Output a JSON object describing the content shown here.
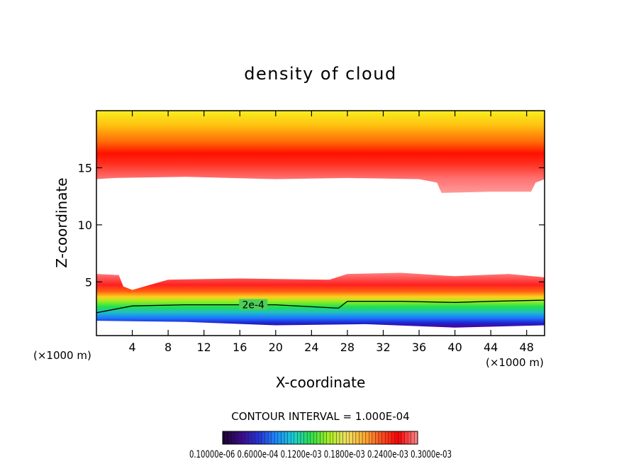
{
  "chart_data": {
    "type": "heatmap",
    "title": "density of cloud",
    "xlabel": "X-coordinate",
    "ylabel": "Z-coordinate",
    "x_unit": "(×1000 m)",
    "y_unit": "(×1000 m)",
    "xlim": [
      0,
      50
    ],
    "ylim": [
      0.3,
      20
    ],
    "x_ticks": [
      4,
      8,
      12,
      16,
      20,
      24,
      28,
      32,
      36,
      40,
      44,
      48
    ],
    "y_ticks": [
      5,
      10,
      15
    ],
    "contour_label": "2e-4",
    "contour_interval_text": "CONTOUR INTERVAL = 1.000E-04",
    "colorbar_labels_text": "0.10000e-06 0.6000e-04 0.1200e-03 0.1800e-03 0.2400e-03 0.3000e-03",
    "upper_layer": {
      "top_km": 20,
      "base_km_profile": [
        [
          0,
          14.0
        ],
        [
          2,
          14.1
        ],
        [
          10,
          14.2
        ],
        [
          20,
          14.0
        ],
        [
          28,
          14.1
        ],
        [
          36,
          14.0
        ],
        [
          38,
          13.7
        ],
        [
          38.5,
          12.8
        ],
        [
          44,
          12.9
        ],
        [
          48.5,
          12.9
        ],
        [
          49,
          13.7
        ],
        [
          50,
          14.0
        ]
      ],
      "peak_km": 16.0
    },
    "lower_layer": {
      "base_km_profile": [
        [
          0,
          1.6
        ],
        [
          10,
          1.5
        ],
        [
          20,
          1.2
        ],
        [
          30,
          1.3
        ],
        [
          40,
          1.0
        ],
        [
          50,
          1.2
        ]
      ],
      "top_km_profile": [
        [
          0,
          5.7
        ],
        [
          2.5,
          5.6
        ],
        [
          3,
          4.6
        ],
        [
          4,
          4.3
        ],
        [
          8,
          5.2
        ],
        [
          16,
          5.3
        ],
        [
          26,
          5.2
        ],
        [
          28,
          5.7
        ],
        [
          34,
          5.8
        ],
        [
          40,
          5.5
        ],
        [
          46,
          5.7
        ],
        [
          50,
          5.4
        ]
      ],
      "contour_2e4_km_profile": [
        [
          0,
          2.3
        ],
        [
          4,
          2.9
        ],
        [
          10,
          3.0
        ],
        [
          20,
          3.0
        ],
        [
          27,
          2.7
        ],
        [
          28,
          3.3
        ],
        [
          34,
          3.3
        ],
        [
          40,
          3.2
        ],
        [
          44,
          3.3
        ],
        [
          50,
          3.4
        ]
      ]
    },
    "colorbar_colors": [
      "#1a0033",
      "#3b0a8c",
      "#2434d8",
      "#1a8cff",
      "#19d0d0",
      "#2ee04a",
      "#a8f020",
      "#f0e060",
      "#ffb030",
      "#ff5020",
      "#ff0000",
      "#ff8080"
    ]
  }
}
